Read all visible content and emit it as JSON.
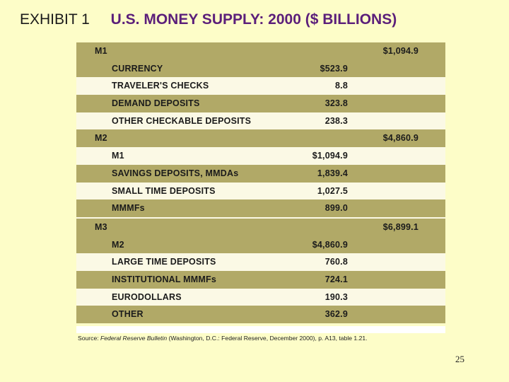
{
  "title": {
    "exhibit": "EXHIBIT 1",
    "heading": "U.S. MONEY SUPPLY: 2000 ($ BILLIONS)"
  },
  "rows": [
    {
      "label": "M1",
      "value": "$1,094.9",
      "kind": "group"
    },
    {
      "label": "CURRENCY",
      "value": "$523.9",
      "kind": "dark"
    },
    {
      "label": "TRAVELER'S CHECKS",
      "value": "8.8",
      "kind": "light"
    },
    {
      "label": "DEMAND DEPOSITS",
      "value": "323.8",
      "kind": "dark"
    },
    {
      "label": "OTHER CHECKABLE DEPOSITS",
      "value": "238.3",
      "kind": "light"
    },
    {
      "label": "M2",
      "value": "$4,860.9",
      "kind": "group"
    },
    {
      "label": "M1",
      "value": "$1,094.9",
      "kind": "light"
    },
    {
      "label": "SAVINGS DEPOSITS, MMDAs",
      "value": "1,839.4",
      "kind": "dark"
    },
    {
      "label": "SMALL TIME DEPOSITS",
      "value": "1,027.5",
      "kind": "light"
    },
    {
      "label": "MMMFs",
      "value": "899.0",
      "kind": "dark"
    },
    {
      "label": "M3",
      "value": "$6,899.1",
      "kind": "group-sep"
    },
    {
      "label": "M2",
      "value": "$4,860.9",
      "kind": "dark"
    },
    {
      "label": "LARGE TIME DEPOSITS",
      "value": "760.8",
      "kind": "light"
    },
    {
      "label": "INSTITUTIONAL MMMFs",
      "value": "724.1",
      "kind": "dark"
    },
    {
      "label": "EURODOLLARS",
      "value": "190.3",
      "kind": "light"
    },
    {
      "label": "OTHER",
      "value": "362.9",
      "kind": "dark"
    }
  ],
  "source": {
    "prefix": "Source: ",
    "publication": "Federal Reserve Bulletin",
    "rest": " (Washington, D.C.: Federal Reserve, December 2000), p. A13, table 1.21."
  },
  "page_number": "25"
}
